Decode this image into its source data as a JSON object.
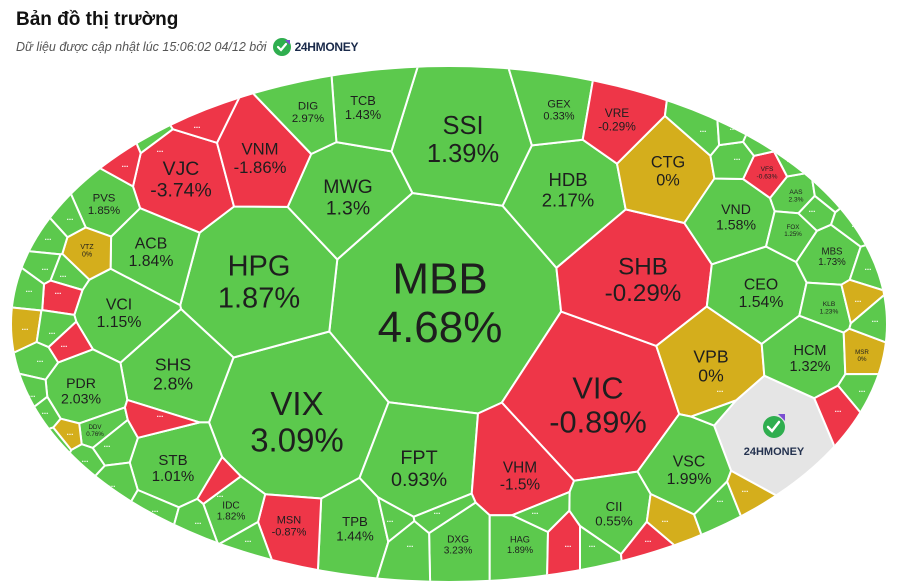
{
  "header": {
    "title": "Bản đồ thị trường",
    "subtitle": "Dữ liệu được cập nhật lúc 15:06:02 04/12 bởi",
    "brand": "24HMONEY"
  },
  "colors": {
    "up": "#5cc94d",
    "down": "#ee3648",
    "flat": "#d4ae1c",
    "logo_bg": "#e5e5e5",
    "border": "#ffffff"
  },
  "map": {
    "more_label": "...",
    "logo_text": "24HMONEY",
    "stocks": [
      {
        "ticker": "MBB",
        "change": "4.68%",
        "status": "up"
      },
      {
        "ticker": "SSI",
        "change": "1.39%",
        "status": "up"
      },
      {
        "ticker": "VIX",
        "change": "3.09%",
        "status": "up"
      },
      {
        "ticker": "HPG",
        "change": "1.87%",
        "status": "up"
      },
      {
        "ticker": "VIC",
        "change": "-0.89%",
        "status": "down"
      },
      {
        "ticker": "SHB",
        "change": "-0.29%",
        "status": "down"
      },
      {
        "ticker": "FPT",
        "change": "0.93%",
        "status": "up"
      },
      {
        "ticker": "MWG",
        "change": "1.3%",
        "status": "up"
      },
      {
        "ticker": "HDB",
        "change": "2.17%",
        "status": "up"
      },
      {
        "ticker": "CTG",
        "change": "0%",
        "status": "flat"
      },
      {
        "ticker": "VPB",
        "change": "0%",
        "status": "flat"
      },
      {
        "ticker": "VJC",
        "change": "-3.74%",
        "status": "down"
      },
      {
        "ticker": "VNM",
        "change": "-1.86%",
        "status": "down"
      },
      {
        "ticker": "SHS",
        "change": "2.8%",
        "status": "up"
      },
      {
        "ticker": "VHM",
        "change": "-1.5%",
        "status": "down"
      },
      {
        "ticker": "ACB",
        "change": "1.84%",
        "status": "up"
      },
      {
        "ticker": "VCI",
        "change": "1.15%",
        "status": "up"
      },
      {
        "ticker": "STB",
        "change": "1.01%",
        "status": "up"
      },
      {
        "ticker": "CEO",
        "change": "1.54%",
        "status": "up"
      },
      {
        "ticker": "VND",
        "change": "1.58%",
        "status": "up"
      },
      {
        "ticker": "HCM",
        "change": "1.32%",
        "status": "up"
      },
      {
        "ticker": "VSC",
        "change": "1.99%",
        "status": "up"
      },
      {
        "ticker": "PDR",
        "change": "2.03%",
        "status": "up"
      },
      {
        "ticker": "CII",
        "change": "0.55%",
        "status": "up"
      },
      {
        "ticker": "TPB",
        "change": "1.44%",
        "status": "up"
      },
      {
        "ticker": "TCB",
        "change": "1.43%",
        "status": "up"
      },
      {
        "ticker": "PVS",
        "change": "1.85%",
        "status": "up"
      },
      {
        "ticker": "DIG",
        "change": "2.97%",
        "status": "up"
      },
      {
        "ticker": "GEX",
        "change": "0.33%",
        "status": "up"
      },
      {
        "ticker": "VRE",
        "change": "-0.29%",
        "status": "down"
      },
      {
        "ticker": "MSN",
        "change": "-0.87%",
        "status": "down"
      },
      {
        "ticker": "IDC",
        "change": "1.82%",
        "status": "up"
      },
      {
        "ticker": "DXG",
        "change": "3.23%",
        "status": "up"
      },
      {
        "ticker": "HAG",
        "change": "1.89%",
        "status": "up"
      },
      {
        "ticker": "MBS",
        "change": "1.73%",
        "status": "up"
      },
      {
        "ticker": "VTZ",
        "change": "0%",
        "status": "flat"
      },
      {
        "ticker": "DDV",
        "change": "0.76%",
        "status": "up"
      },
      {
        "ticker": "AAS",
        "change": "2.3%",
        "status": "up"
      },
      {
        "ticker": "FOX",
        "change": "1.25%",
        "status": "up"
      },
      {
        "ticker": "VFS",
        "change": "-0.63%",
        "status": "down"
      },
      {
        "ticker": "KLB",
        "change": "1.23%",
        "status": "up"
      },
      {
        "ticker": "MSR",
        "change": "0%",
        "status": "flat"
      }
    ],
    "small_cells": [
      {
        "status": "down"
      },
      {
        "status": "up"
      },
      {
        "status": "down"
      },
      {
        "status": "up"
      },
      {
        "status": "up"
      },
      {
        "status": "up"
      },
      {
        "status": "up"
      },
      {
        "status": "down"
      },
      {
        "status": "up"
      },
      {
        "status": "flat"
      },
      {
        "status": "up"
      },
      {
        "status": "up"
      },
      {
        "status": "up"
      },
      {
        "status": "down"
      },
      {
        "status": "up"
      },
      {
        "status": "up"
      },
      {
        "status": "flat"
      },
      {
        "status": "up"
      },
      {
        "status": "up"
      },
      {
        "status": "up"
      },
      {
        "status": "down"
      },
      {
        "status": "up"
      },
      {
        "status": "up"
      },
      {
        "status": "down"
      },
      {
        "status": "up"
      },
      {
        "status": "up"
      },
      {
        "status": "up"
      },
      {
        "status": "up"
      },
      {
        "status": "up"
      },
      {
        "status": "down"
      },
      {
        "status": "up"
      },
      {
        "status": "down"
      },
      {
        "status": "flat"
      },
      {
        "status": "up"
      },
      {
        "status": "flat"
      },
      {
        "status": "up"
      },
      {
        "status": "up"
      },
      {
        "status": "up"
      },
      {
        "status": "up"
      },
      {
        "status": "up"
      },
      {
        "status": "up"
      },
      {
        "status": "up"
      },
      {
        "status": "up"
      },
      {
        "status": "flat"
      },
      {
        "status": "up"
      },
      {
        "status": "up"
      },
      {
        "status": "down"
      },
      {
        "status": "up"
      },
      {
        "status": "up"
      }
    ]
  }
}
